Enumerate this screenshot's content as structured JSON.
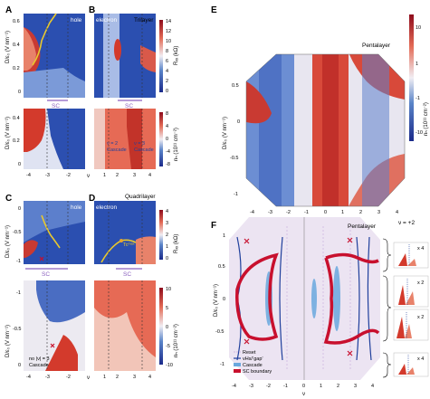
{
  "panels": {
    "A": {
      "letter": "A",
      "tag": "hole",
      "sc": "SC"
    },
    "B": {
      "letter": "B",
      "tag": "electron",
      "title": "Trilayer",
      "sc": "SC",
      "cascade_left": [
        "ν = 2",
        "Cascade"
      ],
      "cascade_right": [
        "ν = 3",
        "Cascade"
      ],
      "cbar1": {
        "label": "Rₓₓ (kΩ)",
        "ticks": [
          "14",
          "12",
          "10",
          "8",
          "6",
          "4",
          "2",
          "0"
        ]
      },
      "cbar2": {
        "label": "nₕ (10¹¹ cm⁻²)",
        "ticks": [
          "8",
          "4",
          "0",
          "-4",
          "-8"
        ]
      }
    },
    "C": {
      "letter": "C",
      "tag": "hole",
      "sc": "SC",
      "note": [
        "no |ν| = 3",
        "Cascade"
      ]
    },
    "D": {
      "letter": "D",
      "tag": "electron",
      "title": "Quadrilayer",
      "sc": "SC",
      "tc": "Tcᵐᵃˣ",
      "cbar1": {
        "label": "Rₓₓ (kΩ)",
        "ticks": [
          "4",
          "3",
          "2",
          "1",
          "0"
        ]
      },
      "cbar2": {
        "label": "nₕ (10¹¹ cm⁻²)",
        "ticks": [
          "10",
          "5",
          "0",
          "-5",
          "-10"
        ]
      }
    },
    "E": {
      "letter": "E",
      "title": "Pentalayer",
      "cbar": {
        "label": "nₕ (10¹¹ cm⁻²)",
        "ticks": [
          "10",
          "1",
          "-1",
          "-10"
        ]
      }
    },
    "F": {
      "letter": "F",
      "title": "Pentalayer",
      "nu_label": "ν = +2",
      "multipliers": [
        "x 4",
        "x 2",
        "x 2",
        "x 4"
      ],
      "legend": [
        "Reset",
        "vHs/‘gap’",
        "Cascade",
        "SC boundary"
      ]
    }
  },
  "axes": {
    "d_label": "D/ε₀ (V nm⁻¹)",
    "nu_label": "ν",
    "y_ticks_AB": [
      "0.6",
      "0.4",
      "0.2",
      "0"
    ],
    "y_ticks_AB2": [
      "0.4",
      "0.2",
      "0"
    ],
    "x_ticks_left": [
      "-4",
      "-3",
      "-2"
    ],
    "x_ticks_right": [
      "1",
      "2",
      "3",
      "4"
    ],
    "y_ticks_C": [
      "0",
      "-0.5",
      "-1"
    ],
    "y_ticks_C2": [
      "-1",
      "-0.5",
      "0"
    ],
    "y_ticks_E": [
      "0.5",
      "0",
      "-0.5",
      "-1"
    ],
    "x_ticks_E": [
      "-4",
      "-3",
      "-2",
      "-1",
      "0",
      "1",
      "2",
      "3",
      "4"
    ],
    "y_ticks_F": [
      "1",
      "0.5",
      "0",
      "-0.5",
      "-1"
    ]
  },
  "colors": {
    "red": "#c8102e",
    "blue": "#1f3f9c",
    "light": "#f3f1f6",
    "yellow": "#e8c82e",
    "purple": "#8b5fbf",
    "sc": "#c8102e",
    "vhs": "#1f3f9c",
    "cascade": "#6aa8de",
    "reset": "#cfb8e0"
  }
}
